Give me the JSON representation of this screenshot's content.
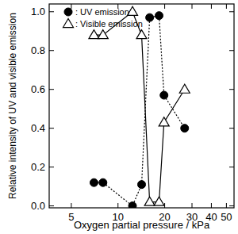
{
  "chart_data": {
    "type": "line",
    "x_label": "Oxygen partial pressure / kPa",
    "y_label": "Relative intensity of UV and visible emission",
    "x": [
      7.0,
      8.0,
      12.4,
      14.2,
      16.0,
      18.4,
      19.8,
      26.9
    ],
    "series": [
      {
        "name": ": UV emission",
        "color": "#000000",
        "marker": "filled_circle",
        "line_style": "dotted",
        "values": [
          0.12,
          0.12,
          0.0,
          0.11,
          0.97,
          0.98,
          0.57,
          0.4
        ]
      },
      {
        "name": ": Visible emission",
        "color": "#000000",
        "marker": "open_triangle",
        "line_style": "solid",
        "values": [
          0.88,
          0.88,
          1.0,
          0.88,
          0.02,
          0.02,
          0.43,
          0.6
        ]
      }
    ],
    "log": "x",
    "xlim": [
      3.6,
      56
    ],
    "xticks": [
      5,
      10,
      20,
      30,
      40,
      50
    ],
    "ylim": [
      -0.01,
      1.04
    ],
    "yticks": [
      {
        "value": 0,
        "label": "0.0"
      },
      0.2,
      0.4,
      0.6,
      0.8,
      {
        "value": 1,
        "label": "1.0"
      }
    ],
    "grid": false,
    "legend": "upper left"
  }
}
